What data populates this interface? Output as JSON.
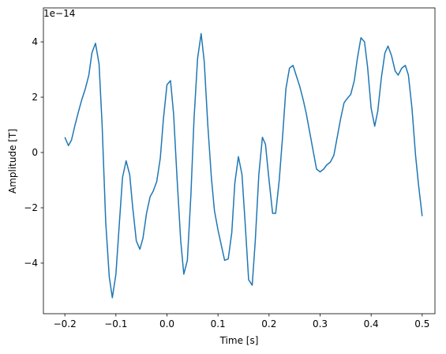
{
  "chart_data": {
    "type": "line",
    "xlabel": "Time [s]",
    "ylabel": "Amplitude [T]",
    "offset_text": "1e−14",
    "x": [
      -0.2,
      -0.193,
      -0.187,
      -0.18,
      -0.173,
      -0.167,
      -0.16,
      -0.153,
      -0.147,
      -0.14,
      -0.133,
      -0.127,
      -0.12,
      -0.113,
      -0.107,
      -0.1,
      -0.093,
      -0.087,
      -0.08,
      -0.073,
      -0.067,
      -0.06,
      -0.053,
      -0.047,
      -0.04,
      -0.033,
      -0.027,
      -0.02,
      -0.013,
      -0.007,
      0,
      0.007,
      0.013,
      0.02,
      0.027,
      0.033,
      0.04,
      0.047,
      0.053,
      0.06,
      0.067,
      0.073,
      0.08,
      0.087,
      0.093,
      0.1,
      0.107,
      0.113,
      0.12,
      0.127,
      0.133,
      0.14,
      0.147,
      0.153,
      0.16,
      0.167,
      0.173,
      0.18,
      0.187,
      0.193,
      0.2,
      0.207,
      0.213,
      0.22,
      0.227,
      0.233,
      0.24,
      0.247,
      0.253,
      0.26,
      0.267,
      0.273,
      0.28,
      0.287,
      0.293,
      0.3,
      0.307,
      0.313,
      0.32,
      0.327,
      0.333,
      0.34,
      0.347,
      0.353,
      0.36,
      0.367,
      0.373,
      0.38,
      0.387,
      0.393,
      0.4,
      0.407,
      0.413,
      0.42,
      0.427,
      0.433,
      0.44,
      0.447,
      0.453,
      0.46,
      0.467,
      0.473,
      0.48,
      0.487,
      0.493,
      0.5
    ],
    "series": [
      {
        "color": "#1f77b4",
        "values": [
          0.55,
          0.25,
          0.45,
          1.0,
          1.5,
          1.9,
          2.3,
          2.8,
          3.6,
          3.95,
          3.2,
          1.0,
          -2.5,
          -4.5,
          -5.25,
          -4.4,
          -2.5,
          -0.9,
          -0.3,
          -0.8,
          -2.0,
          -3.2,
          -3.5,
          -3.1,
          -2.2,
          -1.6,
          -1.4,
          -1.05,
          -0.2,
          1.2,
          2.45,
          2.6,
          1.4,
          -1.0,
          -3.2,
          -4.4,
          -3.9,
          -1.5,
          1.2,
          3.4,
          4.3,
          3.3,
          1.0,
          -0.9,
          -2.1,
          -2.8,
          -3.4,
          -3.9,
          -3.85,
          -2.9,
          -1.1,
          -0.15,
          -0.8,
          -2.5,
          -4.6,
          -4.8,
          -3.2,
          -0.8,
          0.55,
          0.3,
          -1.0,
          -2.2,
          -2.2,
          -1.0,
          0.7,
          2.3,
          3.05,
          3.15,
          2.8,
          2.4,
          1.9,
          1.4,
          0.7,
          0.0,
          -0.6,
          -0.7,
          -0.6,
          -0.45,
          -0.35,
          -0.1,
          0.5,
          1.2,
          1.8,
          1.95,
          2.1,
          2.6,
          3.4,
          4.15,
          4.0,
          3.1,
          1.6,
          0.95,
          1.5,
          2.7,
          3.6,
          3.85,
          3.5,
          2.95,
          2.8,
          3.05,
          3.15,
          2.8,
          1.6,
          -0.1,
          -1.2,
          -2.3
        ]
      }
    ],
    "xlim": [
      -0.242,
      0.525
    ],
    "ylim": [
      -5.83,
      5.23
    ],
    "xticks": [
      {
        "value": -0.2,
        "label": "−0.2"
      },
      {
        "value": -0.1,
        "label": "−0.1"
      },
      {
        "value": 0.0,
        "label": "0.0"
      },
      {
        "value": 0.1,
        "label": "0.1"
      },
      {
        "value": 0.2,
        "label": "0.2"
      },
      {
        "value": 0.3,
        "label": "0.3"
      },
      {
        "value": 0.4,
        "label": "0.4"
      },
      {
        "value": 0.5,
        "label": "0.5"
      }
    ],
    "yticks": [
      {
        "value": -4,
        "label": "−4"
      },
      {
        "value": -2,
        "label": "−2"
      },
      0,
      2,
      4
    ],
    "grid": false
  }
}
